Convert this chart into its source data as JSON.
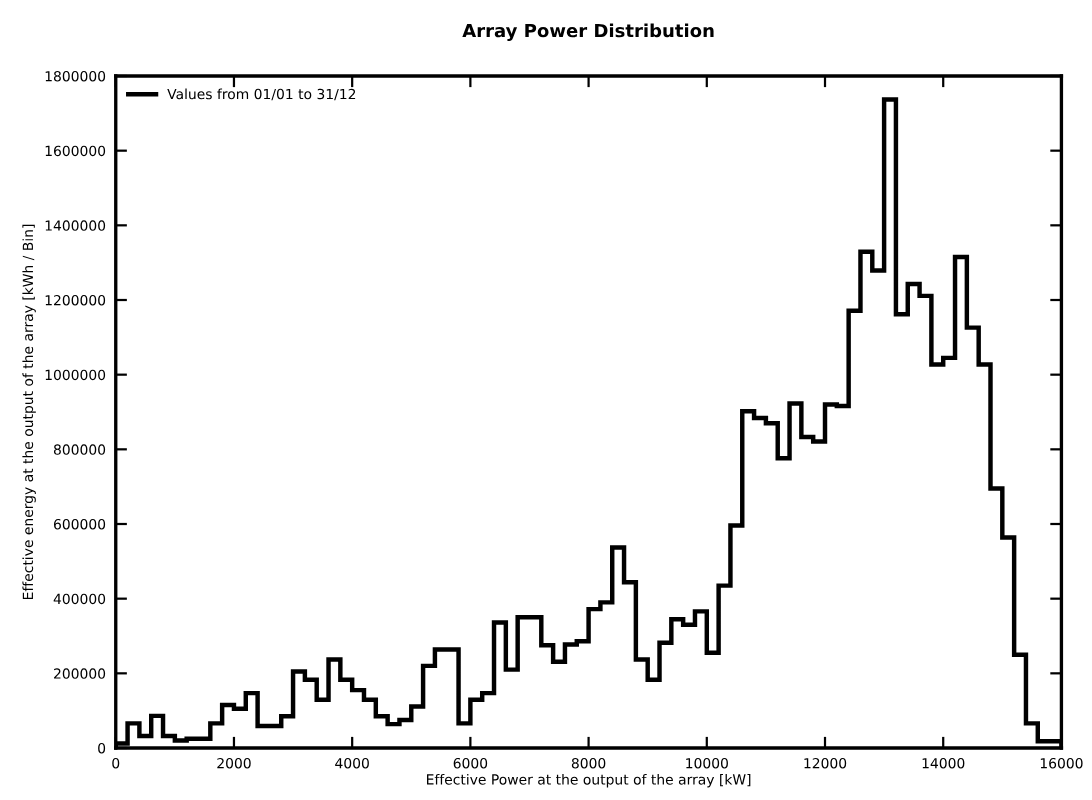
{
  "chart_data": {
    "type": "histogram",
    "title": "Array Power Distribution",
    "xlabel": "Effective Power at the output of the array [kW]",
    "ylabel": "Effective energy at the output of the array [kWh / Bin]",
    "bins": [
      0,
      200,
      400,
      600,
      800,
      1000,
      1200,
      1400,
      1600,
      1800,
      2000,
      2200,
      2400,
      2600,
      2800,
      3000,
      3200,
      3400,
      3600,
      3800,
      4000,
      4200,
      4400,
      4600,
      4800,
      5000,
      5200,
      5400,
      5600,
      5800,
      6000,
      6200,
      6400,
      6600,
      6800,
      7000,
      7200,
      7400,
      7600,
      7800,
      8000,
      8200,
      8400,
      8600,
      8800,
      9000,
      9200,
      9400,
      9600,
      9800,
      10000,
      10200,
      10400,
      10600,
      10800,
      11000,
      11200,
      11400,
      11600,
      11800,
      12000,
      12200,
      12400,
      12600,
      12800,
      13000,
      13200,
      13400,
      13600,
      13800,
      14000,
      14200,
      14400,
      14600,
      14800,
      15000,
      15200,
      15400,
      15600,
      15800,
      16000
    ],
    "series": [
      {
        "name": "Values from 01/01 to 31/12",
        "color": "#000000",
        "values": [
          12000,
          66000,
          32000,
          86000,
          32000,
          20000,
          25000,
          25000,
          66000,
          115000,
          105000,
          147000,
          59000,
          59000,
          85000,
          205000,
          183000,
          129000,
          237000,
          183000,
          155000,
          129000,
          85000,
          64000,
          75000,
          111000,
          220000,
          264000,
          264000,
          66000,
          129000,
          147000,
          336000,
          210000,
          350000,
          350000,
          275000,
          231000,
          277000,
          286000,
          372000,
          390000,
          537000,
          444000,
          237000,
          183000,
          282000,
          345000,
          330000,
          366000,
          255000,
          435000,
          596000,
          902000,
          884000,
          870000,
          776000,
          923000,
          833000,
          821000,
          920000,
          916000,
          1171000,
          1329000,
          1279000,
          1737000,
          1162000,
          1243000,
          1211000,
          1027000,
          1045000,
          1315000,
          1126000,
          1027000,
          695000,
          564000,
          250000,
          66000,
          18000,
          18000
        ]
      }
    ],
    "xlim": [
      0,
      16000
    ],
    "xticks": [
      0,
      2000,
      4000,
      6000,
      8000,
      10000,
      12000,
      14000,
      16000
    ],
    "ylim": [
      0,
      1800000
    ],
    "yticks": [
      0,
      200000,
      400000,
      600000,
      800000,
      1000000,
      1200000,
      1400000,
      1600000,
      1800000
    ],
    "legend": "top left",
    "grid": false
  }
}
